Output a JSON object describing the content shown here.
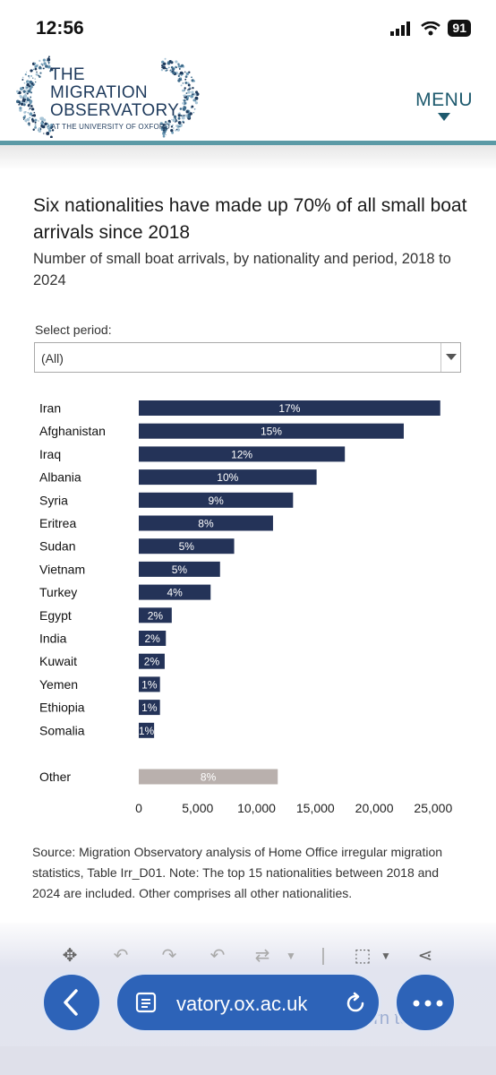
{
  "status_bar": {
    "time": "12:56",
    "battery": "91"
  },
  "header": {
    "logo_lines": [
      "THE",
      "MIGRATION",
      "OBSERVATORY"
    ],
    "logo_sub": "AT THE UNIVERSITY OF OXFORD",
    "menu_label": "MENU"
  },
  "chart": {
    "title": "Six nationalities have made up 70% of all small boat arrivals since 2018",
    "subtitle": "Number of small boat arrivals, by nationality and period, 2018 to 2024"
  },
  "filter": {
    "label": "Select period:",
    "value": "(All)"
  },
  "chart_data": {
    "type": "bar",
    "orientation": "horizontal",
    "categories": [
      "Iran",
      "Afghanistan",
      "Iraq",
      "Albania",
      "Syria",
      "Eritrea",
      "Sudan",
      "Vietnam",
      "Turkey",
      "Egypt",
      "India",
      "Kuwait",
      "Yemen",
      "Ethiopia",
      "Somalia",
      "Other"
    ],
    "values": [
      25600,
      22500,
      17500,
      15100,
      13100,
      11400,
      8100,
      6900,
      6100,
      2800,
      2300,
      2200,
      1800,
      1800,
      1300,
      11800
    ],
    "labels": [
      "17%",
      "15%",
      "12%",
      "10%",
      "9%",
      "8%",
      "5%",
      "5%",
      "4%",
      "2%",
      "2%",
      "2%",
      "1%",
      "1%",
      "1%",
      "8%"
    ],
    "x_ticks": [
      "0",
      "5,000",
      "10,000",
      "15,000",
      "20,000",
      "25,000"
    ],
    "xlim": [
      0,
      26000
    ],
    "bar_color": "#243358",
    "other_color": "#b9b0ad",
    "grid": false
  },
  "source_text": "Source: Migration Observatory analysis of Home Office irregular migration statistics, Table Irr_D01. Note: The top 15 nationalities between 2018 and 2024 are included. Other comprises all other nationalities.",
  "browser": {
    "url": "vatory.ox.ac.uk",
    "faded_text": "Return to"
  }
}
